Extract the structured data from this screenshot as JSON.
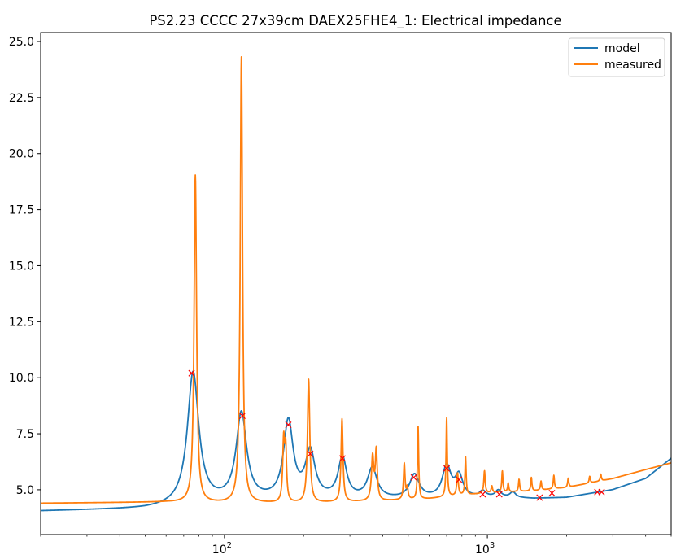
{
  "chart_data": {
    "type": "line",
    "title": "PS2.23 CCCC 27x39cm DAEX25FHE4_1: Electrical impedance",
    "xlabel": "",
    "ylabel": "",
    "xscale": "log",
    "xlim": [
      20,
      5000
    ],
    "ylim": [
      3.0,
      25.4
    ],
    "yticks": [
      "5.0",
      "7.5",
      "10.0",
      "12.5",
      "15.0",
      "17.5",
      "20.0",
      "22.5",
      "25.0"
    ],
    "ytick_values": [
      5.0,
      7.5,
      10.0,
      12.5,
      15.0,
      17.5,
      20.0,
      22.5,
      25.0
    ],
    "xticks": [
      {
        "value": 100,
        "base": "10",
        "exp": "2"
      },
      {
        "value": 1000,
        "base": "10",
        "exp": "3"
      }
    ],
    "grid": false,
    "legend_position": "top-right",
    "series": [
      {
        "name": "model",
        "color": "#1f77b4",
        "base": [
          [
            20,
            4.05
          ],
          [
            50,
            4.15
          ],
          [
            100,
            4.4
          ],
          [
            200,
            4.55
          ],
          [
            400,
            4.55
          ],
          [
            700,
            4.6
          ],
          [
            1000,
            4.65
          ],
          [
            1500,
            4.6
          ],
          [
            2000,
            4.65
          ],
          [
            3000,
            5.0
          ],
          [
            4000,
            5.5
          ],
          [
            5000,
            6.4
          ]
        ],
        "peaks": [
          [
            76,
            5.9,
            0.06
          ],
          [
            116,
            3.9,
            0.055
          ],
          [
            175,
            3.45,
            0.05
          ],
          [
            212,
            2.05,
            0.05
          ],
          [
            281,
            1.8,
            0.045
          ],
          [
            365,
            1.35,
            0.05
          ],
          [
            528,
            1.05,
            0.05
          ],
          [
            700,
            1.4,
            0.045
          ],
          [
            780,
            0.95,
            0.04
          ],
          [
            960,
            0.25,
            0.03
          ],
          [
            1100,
            0.3,
            0.03
          ],
          [
            1250,
            0.25,
            0.03
          ]
        ]
      },
      {
        "name": "measured",
        "color": "#ff7f0e",
        "base": [
          [
            20,
            4.4
          ],
          [
            60,
            4.45
          ],
          [
            100,
            4.4
          ],
          [
            200,
            4.4
          ],
          [
            400,
            4.5
          ],
          [
            600,
            4.6
          ],
          [
            800,
            4.75
          ],
          [
            1000,
            4.85
          ],
          [
            1500,
            4.95
          ],
          [
            2000,
            5.1
          ],
          [
            3000,
            5.5
          ],
          [
            4000,
            5.9
          ],
          [
            5000,
            6.2
          ]
        ],
        "peaks": [
          [
            77.5,
            14.6,
            0.013
          ],
          [
            116,
            19.9,
            0.012
          ],
          [
            168,
            2.7,
            0.01
          ],
          [
            171,
            2.2,
            0.009
          ],
          [
            209,
            5.5,
            0.012
          ],
          [
            280,
            3.7,
            0.01
          ],
          [
            366,
            1.95,
            0.012
          ],
          [
            378,
            2.2,
            0.01
          ],
          [
            483,
            1.6,
            0.008
          ],
          [
            496,
            0.5,
            0.008
          ],
          [
            545,
            3.25,
            0.006
          ],
          [
            700,
            3.55,
            0.006
          ],
          [
            770,
            1.0,
            0.008
          ],
          [
            826,
            1.7,
            0.006
          ],
          [
            975,
            1.0,
            0.007
          ],
          [
            1040,
            0.3,
            0.007
          ],
          [
            1140,
            0.95,
            0.006
          ],
          [
            1200,
            0.4,
            0.006
          ],
          [
            1320,
            0.55,
            0.006
          ],
          [
            1470,
            0.6,
            0.006
          ],
          [
            1600,
            0.4,
            0.006
          ],
          [
            1790,
            0.6,
            0.006
          ],
          [
            2030,
            0.4,
            0.006
          ],
          [
            2450,
            0.3,
            0.006
          ],
          [
            2700,
            0.3,
            0.006
          ]
        ]
      }
    ],
    "markers": {
      "color": "#ff0000",
      "points": [
        [
          75,
          10.2
        ],
        [
          117,
          8.3
        ],
        [
          175,
          7.9
        ],
        [
          212,
          6.6
        ],
        [
          281,
          6.4
        ],
        [
          525,
          5.55
        ],
        [
          700,
          5.95
        ],
        [
          780,
          5.45
        ],
        [
          960,
          4.8
        ],
        [
          1110,
          4.8
        ],
        [
          1580,
          4.65
        ],
        [
          1760,
          4.85
        ],
        [
          2620,
          4.9
        ],
        [
          2720,
          4.9
        ]
      ]
    }
  }
}
